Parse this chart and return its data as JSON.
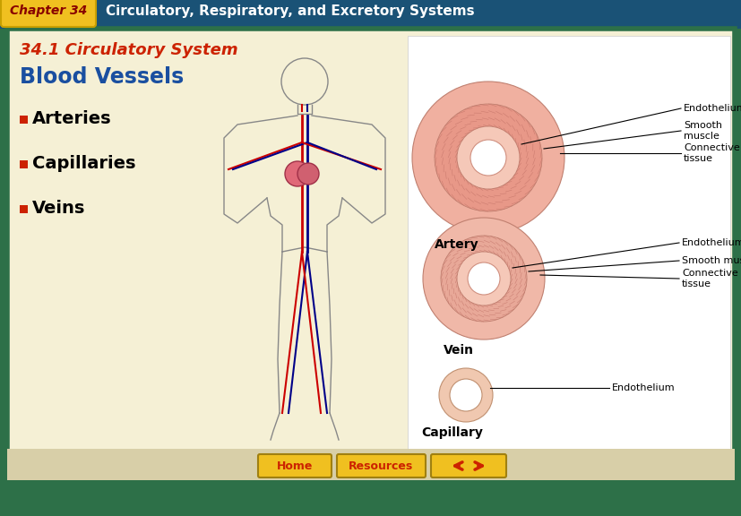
{
  "bg_outer": "#2d7048",
  "bg_header": "#1a5276",
  "bg_content": "#f5f0d5",
  "header_chapter_bg": "#f0c020",
  "header_chapter_text": "Chapter 34",
  "header_title_text": "Circulatory, Respiratory, and Excretory Systems",
  "header_text_color": "#ffffff",
  "section_title": "34.1 Circulatory System",
  "section_title_color": "#cc2200",
  "main_heading": "Blood Vessels",
  "main_heading_color": "#1a4fa0",
  "bullet_color": "#cc2200",
  "bullets": [
    "Arteries",
    "Capillaries",
    "Veins"
  ],
  "bullet_text_color": "#000000",
  "artery_label": "Artery",
  "vein_label": "Vein",
  "capillary_label": "Capillary",
  "artery_annotations": [
    "Endothelium",
    "Smooth\nmuscle",
    "Connective\ntissue"
  ],
  "vein_annotations": [
    "Endothelium",
    "Smooth muscle",
    "Connective\ntissue"
  ],
  "capillary_annotations": [
    "Endothelium"
  ],
  "home_btn_color": "#f0c020",
  "home_btn_text": "Home",
  "resources_btn_color": "#f0c020",
  "resources_btn_text": "Resources",
  "nav_arrow_color": "#cc2200",
  "nav_bg_color": "#d8cfa8"
}
